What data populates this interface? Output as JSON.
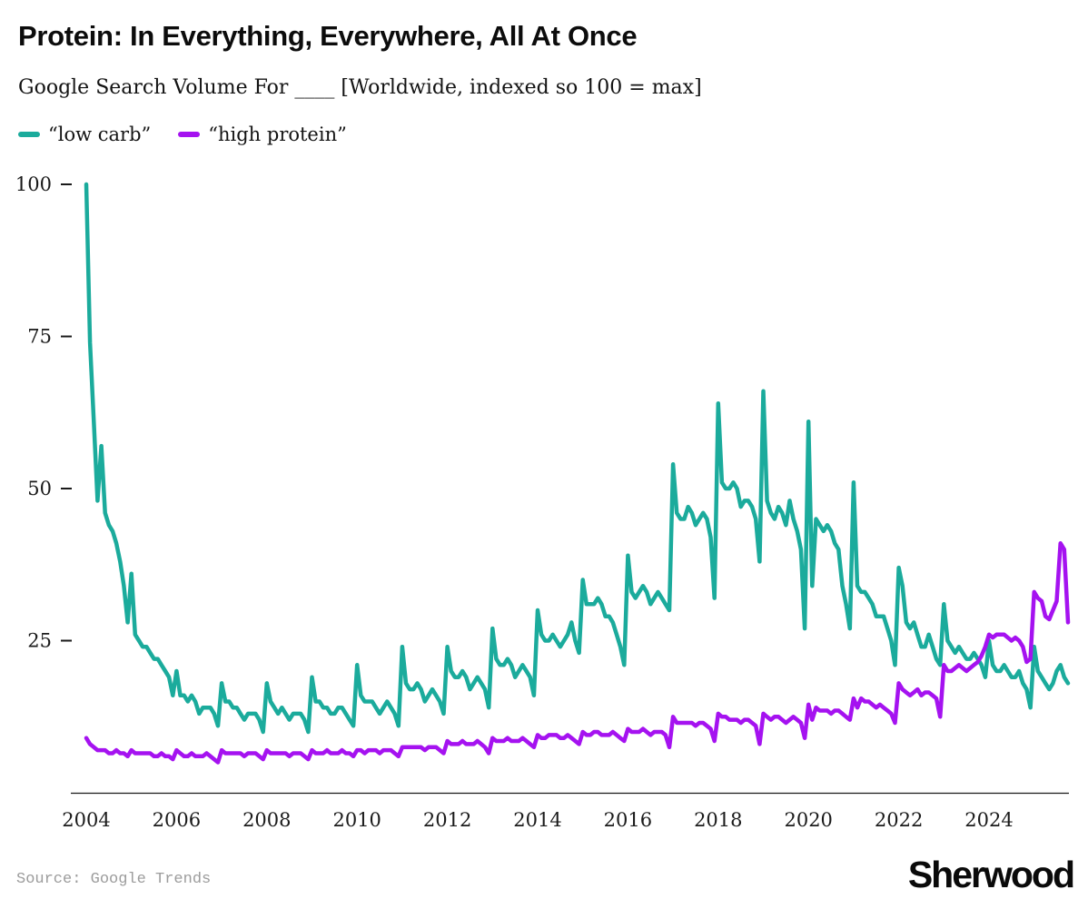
{
  "header": {
    "title": "Protein: In Everything, Everywhere, All At Once",
    "subtitle": "Google Search Volume For ____ [Worldwide, indexed so 100 = max]"
  },
  "legend": {
    "items": [
      {
        "label": "“low carb”"
      },
      {
        "label": "“high protein”"
      }
    ]
  },
  "footer": {
    "source": "Source: Google Trends",
    "brand": "Sherwood"
  },
  "chart_data": {
    "type": "line",
    "title": "Google Search Volume For ____ [Worldwide, indexed so 100 = max]",
    "x_unit": "month",
    "x_range": [
      "2004-01",
      "2025-10"
    ],
    "x_ticks": [
      2004,
      2006,
      2008,
      2010,
      2012,
      2014,
      2016,
      2018,
      2020,
      2022,
      2024
    ],
    "y_ticks": [
      25,
      50,
      75,
      100
    ],
    "ylim": [
      0,
      100
    ],
    "grid": false,
    "legend_position": "top-left",
    "series": [
      {
        "name": "low carb",
        "color": "#1BAB9C",
        "values": [
          100,
          74,
          61,
          48,
          57,
          46,
          44,
          43,
          41,
          38,
          34,
          28,
          36,
          26,
          25,
          24,
          24,
          23,
          22,
          22,
          21,
          20,
          19,
          16,
          20,
          16,
          16,
          15,
          16,
          15,
          13,
          14,
          14,
          14,
          13,
          11,
          18,
          15,
          15,
          14,
          14,
          13,
          12,
          13,
          13,
          13,
          12,
          10,
          18,
          15,
          14,
          13,
          14,
          13,
          12,
          13,
          13,
          13,
          12,
          10,
          19,
          15,
          15,
          14,
          14,
          13,
          13,
          14,
          14,
          13,
          12,
          11,
          21,
          16,
          15,
          15,
          15,
          14,
          13,
          14,
          15,
          14,
          13,
          11,
          24,
          18,
          17,
          17,
          18,
          17,
          15,
          16,
          17,
          16,
          15,
          13,
          24,
          20,
          19,
          19,
          20,
          19,
          17,
          18,
          19,
          18,
          17,
          14,
          27,
          22,
          21,
          21,
          22,
          21,
          19,
          20,
          21,
          20,
          19,
          16,
          30,
          26,
          25,
          25,
          26,
          25,
          24,
          25,
          26,
          28,
          25,
          23,
          35,
          31,
          31,
          31,
          32,
          31,
          29,
          29,
          28,
          26,
          24,
          21,
          39,
          33,
          32,
          33,
          34,
          33,
          31,
          32,
          33,
          32,
          31,
          30,
          54,
          46,
          45,
          45,
          47,
          46,
          44,
          45,
          46,
          45,
          42,
          32,
          64,
          51,
          50,
          50,
          51,
          50,
          47,
          48,
          48,
          47,
          45,
          38,
          66,
          48,
          46,
          45,
          47,
          46,
          44,
          48,
          45,
          43,
          40,
          27,
          61,
          34,
          45,
          44,
          43,
          44,
          43,
          41,
          40,
          34,
          31,
          27,
          51,
          34,
          33,
          33,
          32,
          31,
          29,
          29,
          29,
          27,
          25,
          21,
          37,
          34,
          28,
          27,
          28,
          26,
          24,
          24,
          26,
          24,
          22,
          21,
          31,
          25,
          24,
          23,
          24,
          23,
          22,
          22,
          23,
          22,
          21,
          19,
          25,
          21,
          20,
          20,
          21,
          20,
          19,
          19,
          20,
          18,
          17,
          14,
          24,
          20,
          19,
          18,
          17,
          18,
          20,
          21,
          19,
          18
        ]
      },
      {
        "name": "high protein",
        "color": "#A512F0",
        "values": [
          9,
          8,
          7.5,
          7,
          7,
          7,
          6.5,
          6.5,
          7,
          6.5,
          6.5,
          6,
          7,
          6.5,
          6.5,
          6.5,
          6.5,
          6.5,
          6,
          6,
          6.5,
          6,
          6,
          5.5,
          7,
          6.5,
          6,
          6,
          6.5,
          6,
          6,
          6,
          6.5,
          6,
          5.5,
          5,
          7,
          6.5,
          6.5,
          6.5,
          6.5,
          6.5,
          6,
          6.5,
          6.5,
          6.5,
          6,
          5.5,
          7,
          6.5,
          6.5,
          6.5,
          6.5,
          6.5,
          6,
          6.5,
          6.5,
          6.5,
          6,
          5.5,
          7,
          6.5,
          6.5,
          6.5,
          7,
          6.5,
          6.5,
          6.5,
          7,
          6.5,
          6.5,
          6,
          7,
          7,
          6.5,
          7,
          7,
          7,
          6.5,
          7,
          7,
          7,
          6.5,
          6,
          7.5,
          7.5,
          7.5,
          7.5,
          7.5,
          7.5,
          7,
          7.5,
          7.5,
          7.5,
          7,
          6.5,
          8.5,
          8,
          8,
          8,
          8.5,
          8,
          8,
          8,
          8.5,
          8,
          7.5,
          6.5,
          9,
          8.5,
          8.5,
          8.5,
          9,
          8.5,
          8.5,
          8.5,
          9,
          8.5,
          8,
          7.5,
          9.5,
          9,
          9,
          9.5,
          9.5,
          9.5,
          9,
          9,
          9.5,
          9,
          8.5,
          8,
          10,
          9.5,
          9.5,
          10,
          10,
          9.5,
          9.5,
          9.5,
          10,
          9.5,
          9,
          8.5,
          10.5,
          10,
          10,
          10,
          10.5,
          10,
          9.5,
          10,
          10,
          10,
          9.5,
          7.5,
          12.5,
          11.5,
          11.5,
          11.5,
          11.5,
          11.5,
          11,
          11.5,
          11.5,
          11,
          10.5,
          8.5,
          13,
          12.5,
          12.5,
          12,
          12,
          12,
          11.5,
          12,
          12,
          11.5,
          11,
          8,
          13,
          12.5,
          12,
          12.5,
          12.5,
          12,
          11.5,
          12,
          12.5,
          12,
          11.5,
          9,
          14.5,
          12,
          14,
          13.5,
          13.5,
          13.5,
          13,
          13.5,
          13.5,
          13,
          12.5,
          12,
          15.5,
          14,
          15.5,
          15,
          15,
          14.5,
          14,
          14.5,
          14,
          13.5,
          13,
          11.5,
          18,
          17,
          16.5,
          16,
          16.5,
          17,
          16,
          16.5,
          16.5,
          16,
          15.5,
          12.5,
          21,
          20,
          20,
          20.5,
          21,
          20.5,
          20,
          20.5,
          21,
          21.5,
          22.5,
          24,
          26,
          25.5,
          26,
          26,
          26,
          25.5,
          25,
          25.5,
          25,
          24,
          21.5,
          22,
          33,
          32,
          31.5,
          29,
          28.5,
          30,
          31.5,
          41,
          40,
          28
        ]
      }
    ]
  }
}
